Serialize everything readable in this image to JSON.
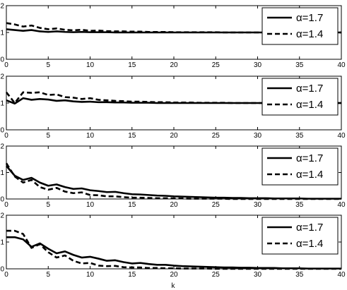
{
  "figure": {
    "xlabel": "k"
  },
  "chart_data": [
    {
      "type": "line",
      "xlim": [
        0,
        40
      ],
      "ylim": [
        0,
        2
      ],
      "xticks": [
        0,
        5,
        10,
        15,
        20,
        25,
        30,
        35,
        40
      ],
      "yticks": [
        0,
        1,
        2
      ],
      "xlabel": "",
      "ylabel": "",
      "title": "",
      "legend_position": "top-right",
      "series": [
        {
          "name": "α=1.7",
          "style": "solid",
          "color": "#000000",
          "x": [
            0,
            1,
            2,
            3,
            4,
            5,
            6,
            7,
            8,
            9,
            10,
            11,
            12,
            13,
            14,
            15,
            16,
            17,
            18,
            19,
            20,
            21,
            22,
            23,
            24,
            25,
            26,
            27,
            28,
            29,
            30,
            31,
            32,
            33,
            34,
            35,
            36,
            37,
            38,
            39,
            40
          ],
          "y": [
            1.12,
            1.09,
            1.06,
            1.09,
            1.04,
            1.02,
            1.04,
            1.02,
            1.01,
            1.02,
            1.01,
            1.01,
            1.01,
            1.0,
            1.0,
            1.0,
            1.0,
            1.0,
            1.0,
            1.0,
            1.0,
            1.0,
            1.0,
            1.0,
            1.0,
            1.0,
            1.0,
            1.0,
            1.0,
            1.0,
            1.0,
            1.0,
            1.0,
            1.0,
            1.0,
            1.0,
            1.0,
            1.0,
            1.0,
            1.0,
            1.0
          ]
        },
        {
          "name": "α=1.4",
          "style": "dashed",
          "color": "#000000",
          "x": [
            0,
            1,
            2,
            3,
            4,
            5,
            6,
            7,
            8,
            9,
            10,
            11,
            12,
            13,
            14,
            15,
            16,
            17,
            18,
            19,
            20,
            21,
            22,
            23,
            24,
            25,
            26,
            27,
            28,
            29,
            30,
            31,
            32,
            33,
            34,
            35,
            36,
            37,
            38,
            39,
            40
          ],
          "y": [
            1.35,
            1.3,
            1.22,
            1.26,
            1.17,
            1.12,
            1.15,
            1.1,
            1.08,
            1.1,
            1.06,
            1.07,
            1.05,
            1.04,
            1.04,
            1.03,
            1.03,
            1.02,
            1.02,
            1.02,
            1.01,
            1.01,
            1.01,
            1.01,
            1.01,
            1.01,
            1.0,
            1.0,
            1.0,
            1.0,
            1.0,
            1.0,
            1.0,
            1.0,
            1.0,
            1.0,
            1.0,
            1.0,
            1.0,
            1.0,
            1.0
          ]
        }
      ]
    },
    {
      "type": "line",
      "xlim": [
        0,
        40
      ],
      "ylim": [
        0,
        2
      ],
      "xticks": [
        0,
        5,
        10,
        15,
        20,
        25,
        30,
        35,
        40
      ],
      "yticks": [
        0,
        1,
        2
      ],
      "xlabel": "",
      "ylabel": "",
      "title": "",
      "legend_position": "top-right",
      "series": [
        {
          "name": "α=1.7",
          "style": "solid",
          "color": "#000000",
          "x": [
            0,
            1,
            2,
            3,
            4,
            5,
            6,
            7,
            8,
            9,
            10,
            11,
            12,
            13,
            14,
            15,
            16,
            17,
            18,
            19,
            20,
            21,
            22,
            23,
            24,
            25,
            26,
            27,
            28,
            29,
            30,
            31,
            32,
            33,
            34,
            35,
            36,
            37,
            38,
            39,
            40
          ],
          "y": [
            1.1,
            0.98,
            1.18,
            1.12,
            1.15,
            1.13,
            1.08,
            1.1,
            1.06,
            1.04,
            1.05,
            1.03,
            1.03,
            1.02,
            1.02,
            1.01,
            1.01,
            1.01,
            1.0,
            1.0,
            1.0,
            1.0,
            1.0,
            1.0,
            1.0,
            1.0,
            1.0,
            1.0,
            1.0,
            1.0,
            1.0,
            1.0,
            1.0,
            1.0,
            1.0,
            1.0,
            1.0,
            1.0,
            1.0,
            1.0,
            1.0
          ]
        },
        {
          "name": "α=1.4",
          "style": "dashed",
          "color": "#000000",
          "x": [
            0,
            1,
            2,
            3,
            4,
            5,
            6,
            7,
            8,
            9,
            10,
            11,
            12,
            13,
            14,
            15,
            16,
            17,
            18,
            19,
            20,
            21,
            22,
            23,
            24,
            25,
            26,
            27,
            28,
            29,
            30,
            31,
            32,
            33,
            34,
            35,
            36,
            37,
            38,
            39,
            40
          ],
          "y": [
            1.4,
            1.0,
            1.4,
            1.38,
            1.4,
            1.3,
            1.32,
            1.22,
            1.2,
            1.15,
            1.18,
            1.12,
            1.1,
            1.08,
            1.07,
            1.05,
            1.05,
            1.04,
            1.03,
            1.03,
            1.02,
            1.02,
            1.02,
            1.01,
            1.01,
            1.01,
            1.01,
            1.0,
            1.0,
            1.0,
            1.0,
            1.0,
            1.0,
            1.0,
            1.0,
            1.0,
            1.0,
            1.0,
            1.0,
            1.0,
            1.0
          ]
        }
      ]
    },
    {
      "type": "line",
      "xlim": [
        0,
        40
      ],
      "ylim": [
        0,
        2
      ],
      "xticks": [
        0,
        5,
        10,
        15,
        20,
        25,
        30,
        35,
        40
      ],
      "yticks": [
        0,
        1,
        2
      ],
      "xlabel": "",
      "ylabel": "",
      "title": "",
      "legend_position": "top-right",
      "series": [
        {
          "name": "α=1.7",
          "style": "solid",
          "color": "#000000",
          "x": [
            0,
            1,
            2,
            3,
            4,
            5,
            6,
            7,
            8,
            9,
            10,
            11,
            12,
            13,
            14,
            15,
            16,
            17,
            18,
            19,
            20,
            21,
            22,
            23,
            24,
            25,
            26,
            27,
            28,
            29,
            30,
            31,
            32,
            33,
            34,
            35,
            36,
            37,
            38,
            39,
            40
          ],
          "y": [
            1.25,
            0.88,
            0.72,
            0.8,
            0.62,
            0.5,
            0.55,
            0.45,
            0.38,
            0.4,
            0.33,
            0.3,
            0.26,
            0.27,
            0.22,
            0.18,
            0.17,
            0.15,
            0.13,
            0.12,
            0.1,
            0.09,
            0.08,
            0.07,
            0.06,
            0.05,
            0.05,
            0.04,
            0.04,
            0.03,
            0.03,
            0.03,
            0.02,
            0.02,
            0.02,
            0.02,
            0.01,
            0.01,
            0.01,
            0.01,
            0.01
          ]
        },
        {
          "name": "α=1.4",
          "style": "dashed",
          "color": "#000000",
          "x": [
            0,
            1,
            2,
            3,
            4,
            5,
            6,
            7,
            8,
            9,
            10,
            11,
            12,
            13,
            14,
            15,
            16,
            17,
            18,
            19,
            20,
            21,
            22,
            23,
            24,
            25,
            26,
            27,
            28,
            29,
            30,
            31,
            32,
            33,
            34,
            35,
            36,
            37,
            38,
            39,
            40
          ],
          "y": [
            1.35,
            0.85,
            0.62,
            0.72,
            0.45,
            0.35,
            0.42,
            0.28,
            0.22,
            0.25,
            0.15,
            0.14,
            0.1,
            0.1,
            0.07,
            0.05,
            0.05,
            0.04,
            0.03,
            0.03,
            0.02,
            0.02,
            0.01,
            0.01,
            0.01,
            0.01,
            0.01,
            0.0,
            0.0,
            0.0,
            0.0,
            0.0,
            0.0,
            0.0,
            0.0,
            0.0,
            0.0,
            0.0,
            0.0,
            0.0,
            0.0
          ]
        }
      ]
    },
    {
      "type": "line",
      "xlim": [
        0,
        40
      ],
      "ylim": [
        0,
        2
      ],
      "xticks": [
        0,
        5,
        10,
        15,
        20,
        25,
        30,
        35,
        40
      ],
      "yticks": [
        0,
        1,
        2
      ],
      "xlabel": "k",
      "ylabel": "",
      "title": "",
      "legend_position": "top-right",
      "series": [
        {
          "name": "α=1.7",
          "style": "solid",
          "color": "#000000",
          "x": [
            0,
            1,
            2,
            3,
            4,
            5,
            6,
            7,
            8,
            9,
            10,
            11,
            12,
            13,
            14,
            15,
            16,
            17,
            18,
            19,
            20,
            21,
            22,
            23,
            24,
            25,
            26,
            27,
            28,
            29,
            30,
            31,
            32,
            33,
            34,
            35,
            36,
            37,
            38,
            39,
            40
          ],
          "y": [
            1.18,
            1.18,
            1.1,
            0.82,
            0.95,
            0.75,
            0.58,
            0.65,
            0.52,
            0.42,
            0.45,
            0.38,
            0.3,
            0.32,
            0.25,
            0.2,
            0.22,
            0.18,
            0.15,
            0.15,
            0.12,
            0.1,
            0.09,
            0.08,
            0.07,
            0.06,
            0.05,
            0.05,
            0.04,
            0.04,
            0.03,
            0.03,
            0.03,
            0.02,
            0.02,
            0.02,
            0.01,
            0.01,
            0.01,
            0.01,
            0.01
          ]
        },
        {
          "name": "α=1.4",
          "style": "dashed",
          "color": "#000000",
          "x": [
            0,
            1,
            2,
            3,
            4,
            5,
            6,
            7,
            8,
            9,
            10,
            11,
            12,
            13,
            14,
            15,
            16,
            17,
            18,
            19,
            20,
            21,
            22,
            23,
            24,
            25,
            26,
            27,
            28,
            29,
            30,
            31,
            32,
            33,
            34,
            35,
            36,
            37,
            38,
            39,
            40
          ],
          "y": [
            1.42,
            1.42,
            1.3,
            0.78,
            0.92,
            0.62,
            0.42,
            0.5,
            0.3,
            0.2,
            0.22,
            0.12,
            0.1,
            0.11,
            0.06,
            0.05,
            0.05,
            0.03,
            0.03,
            0.02,
            0.02,
            0.01,
            0.01,
            0.01,
            0.01,
            0.0,
            0.0,
            0.0,
            0.0,
            0.0,
            0.0,
            0.0,
            0.0,
            0.0,
            0.0,
            0.0,
            0.0,
            0.0,
            0.0,
            0.0,
            0.0
          ]
        }
      ]
    }
  ]
}
